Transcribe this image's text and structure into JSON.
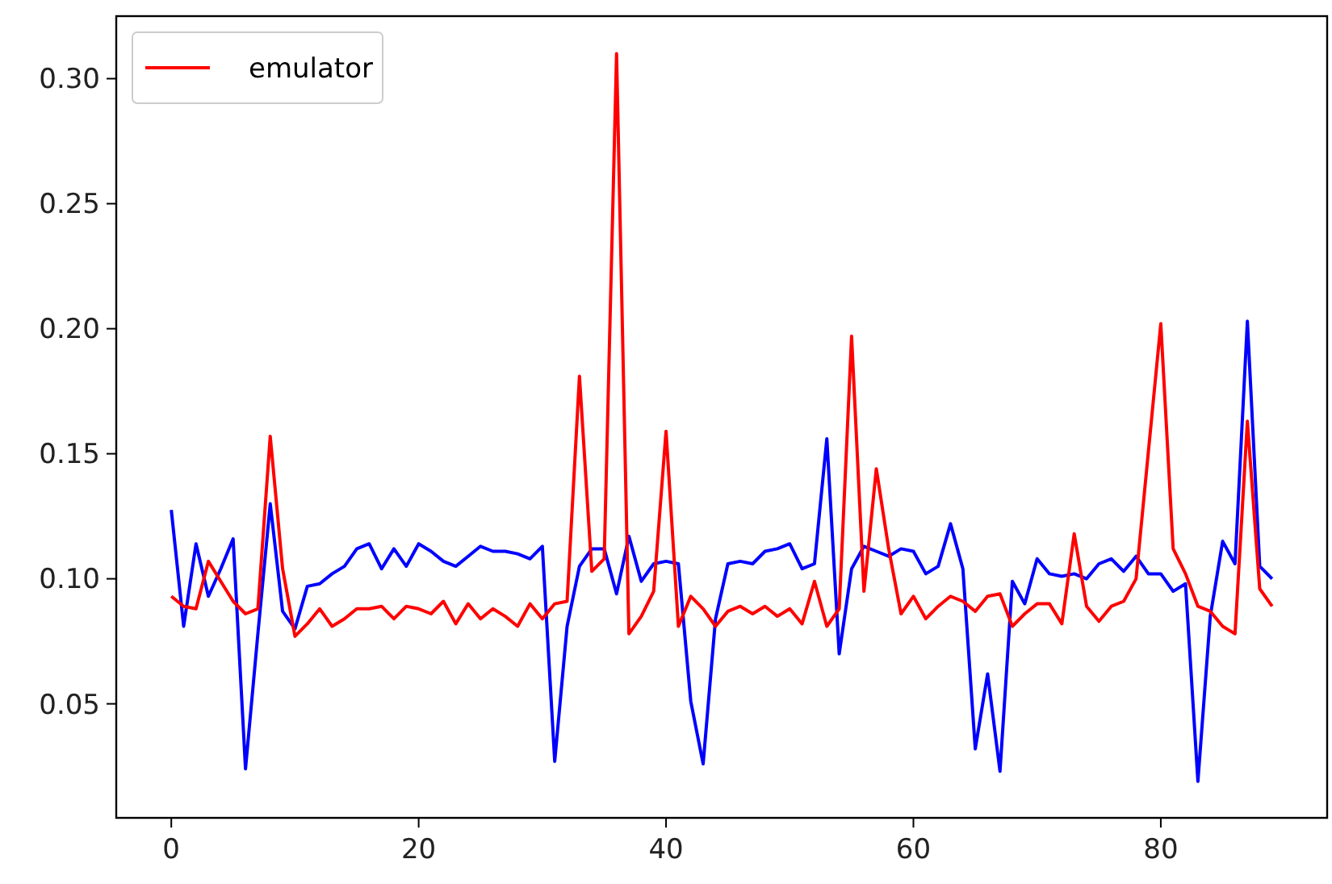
{
  "chart_data": {
    "type": "line",
    "x": [
      0,
      1,
      2,
      3,
      4,
      5,
      6,
      7,
      8,
      9,
      10,
      11,
      12,
      13,
      14,
      15,
      16,
      17,
      18,
      19,
      20,
      21,
      22,
      23,
      24,
      25,
      26,
      27,
      28,
      29,
      30,
      31,
      32,
      33,
      34,
      35,
      36,
      37,
      38,
      39,
      40,
      41,
      42,
      43,
      44,
      45,
      46,
      47,
      48,
      49,
      50,
      51,
      52,
      53,
      54,
      55,
      56,
      57,
      58,
      59,
      60,
      61,
      62,
      63,
      64,
      65,
      66,
      67,
      68,
      69,
      70,
      71,
      72,
      73,
      74,
      75,
      76,
      77,
      78,
      79,
      80,
      81,
      82,
      83,
      84,
      85,
      86,
      87,
      88,
      89
    ],
    "series": [
      {
        "color": "#0000ff",
        "values": [
          0.1275,
          0.081,
          0.114,
          0.093,
          0.104,
          0.116,
          0.024,
          0.078,
          0.13,
          0.087,
          0.08,
          0.097,
          0.098,
          0.102,
          0.105,
          0.112,
          0.114,
          0.104,
          0.112,
          0.105,
          0.114,
          0.111,
          0.107,
          0.105,
          0.109,
          0.113,
          0.111,
          0.111,
          0.11,
          0.108,
          0.113,
          0.027,
          0.081,
          0.105,
          0.112,
          0.112,
          0.094,
          0.117,
          0.099,
          0.106,
          0.107,
          0.106,
          0.051,
          0.026,
          0.084,
          0.106,
          0.107,
          0.106,
          0.111,
          0.112,
          0.114,
          0.104,
          0.106,
          0.156,
          0.07,
          0.104,
          0.113,
          0.111,
          0.109,
          0.112,
          0.111,
          0.102,
          0.105,
          0.122,
          0.104,
          0.032,
          0.062,
          0.023,
          0.099,
          0.09,
          0.108,
          0.102,
          0.101,
          0.102,
          0.1,
          0.106,
          0.108,
          0.103,
          0.109,
          0.102,
          0.102,
          0.095,
          0.098,
          0.019,
          0.085,
          0.115,
          0.106,
          0.203,
          0.105,
          0.1
        ]
      },
      {
        "name": "emulator",
        "color": "#ff0000",
        "values": [
          0.093,
          0.089,
          0.088,
          0.107,
          0.099,
          0.091,
          0.086,
          0.088,
          0.157,
          0.104,
          0.077,
          0.082,
          0.088,
          0.081,
          0.084,
          0.088,
          0.088,
          0.089,
          0.084,
          0.089,
          0.088,
          0.086,
          0.091,
          0.082,
          0.09,
          0.084,
          0.088,
          0.085,
          0.081,
          0.09,
          0.084,
          0.09,
          0.091,
          0.181,
          0.103,
          0.108,
          0.31,
          0.078,
          0.085,
          0.095,
          0.159,
          0.081,
          0.093,
          0.088,
          0.081,
          0.087,
          0.089,
          0.086,
          0.089,
          0.085,
          0.088,
          0.082,
          0.099,
          0.081,
          0.088,
          0.197,
          0.095,
          0.144,
          0.112,
          0.086,
          0.093,
          0.084,
          0.089,
          0.093,
          0.091,
          0.087,
          0.093,
          0.094,
          0.081,
          0.086,
          0.09,
          0.09,
          0.082,
          0.118,
          0.089,
          0.083,
          0.089,
          0.091,
          0.1,
          0.151,
          0.202,
          0.112,
          0.102,
          0.089,
          0.087,
          0.081,
          0.078,
          0.163,
          0.096,
          0.089
        ]
      }
    ],
    "xlim": [
      -4.45,
      93.45
    ],
    "xticks": [
      0,
      20,
      40,
      60,
      80
    ],
    "ylim": [
      0.0044,
      0.325
    ],
    "yticks": [
      {
        "value": 0.05,
        "label": "0.05"
      },
      {
        "value": 0.1,
        "label": "0.10"
      },
      {
        "value": 0.15,
        "label": "0.15"
      },
      {
        "value": 0.2,
        "label": "0.20"
      },
      {
        "value": 0.25,
        "label": "0.25"
      },
      {
        "value": 0.3,
        "label": "0.30"
      }
    ],
    "legend": "top left",
    "grid": false
  }
}
